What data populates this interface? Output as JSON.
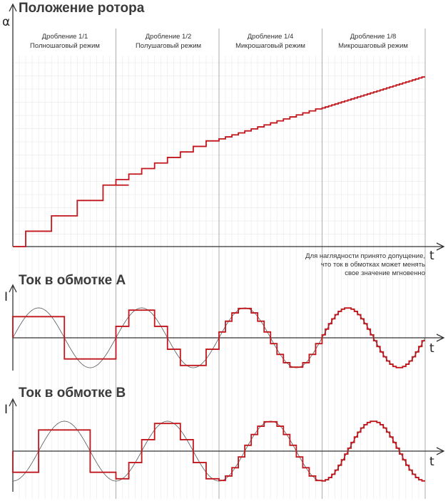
{
  "panel_rotor": {
    "title": "Положение ротора",
    "y_symbol": "α",
    "x_symbol": "t"
  },
  "panel_a": {
    "title": "Ток в обмотке А",
    "y_symbol": "I",
    "x_symbol": "t"
  },
  "panel_b": {
    "title": "Ток в обмотке В",
    "y_symbol": "I",
    "x_symbol": "t"
  },
  "modes": [
    {
      "line1": "Дробление 1/1",
      "line2": "Полношаговый режим",
      "divisor": 1
    },
    {
      "line1": "Дробление 1/2",
      "line2": "Полушаговый режим",
      "divisor": 2
    },
    {
      "line1": "Дробление 1/4",
      "line2": "Микрошаговый режим",
      "divisor": 4
    },
    {
      "line1": "Дробление 1/8",
      "line2": "Микрошаговый режим",
      "divisor": 8
    }
  ],
  "note": {
    "line1": "Для наглядности принято допущение,",
    "line2": "что ток в обмотках может менять",
    "line3": "свое значение мгновенно"
  },
  "colors": {
    "step_curve": "#c0161c",
    "sine_curve": "#555555",
    "axis": "#333333",
    "major_grid": "#9a9a9a",
    "minor_grid": "#ececec"
  }
}
